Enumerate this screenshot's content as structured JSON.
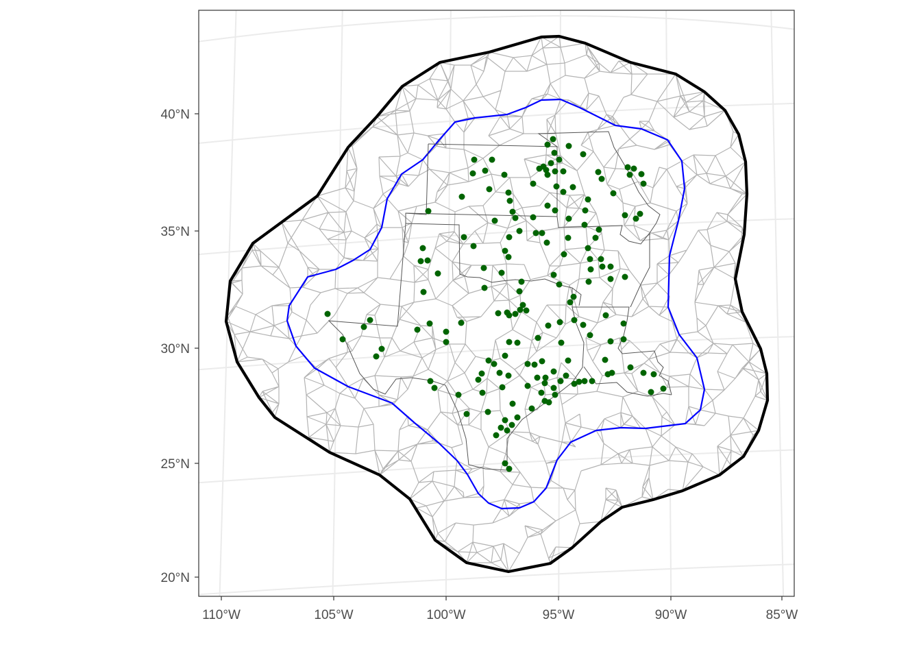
{
  "map": {
    "colors": {
      "background": "#ffffff",
      "graticule": "#ebebeb",
      "mesh": "#b3b3b3",
      "outer_boundary": "#000000",
      "inner_boundary": "#0000ff",
      "state_lines": "#555555",
      "stations": "#006400",
      "tick_text": "#4d4d4d"
    },
    "lat_labels": [
      "40°N",
      "35°N",
      "30°N",
      "25°N",
      "20°N"
    ],
    "lon_labels": [
      "110°W",
      "105°W",
      "100°W",
      "95°W",
      "90°W",
      "85°W"
    ],
    "states_shown": [
      "Texas",
      "Oklahoma",
      "Kansas",
      "Missouri",
      "Arkansas",
      "Louisiana"
    ],
    "layers": [
      "graticule",
      "triangulation-mesh",
      "outer-boundary",
      "inner-boundary",
      "state-outlines",
      "station-points"
    ]
  }
}
